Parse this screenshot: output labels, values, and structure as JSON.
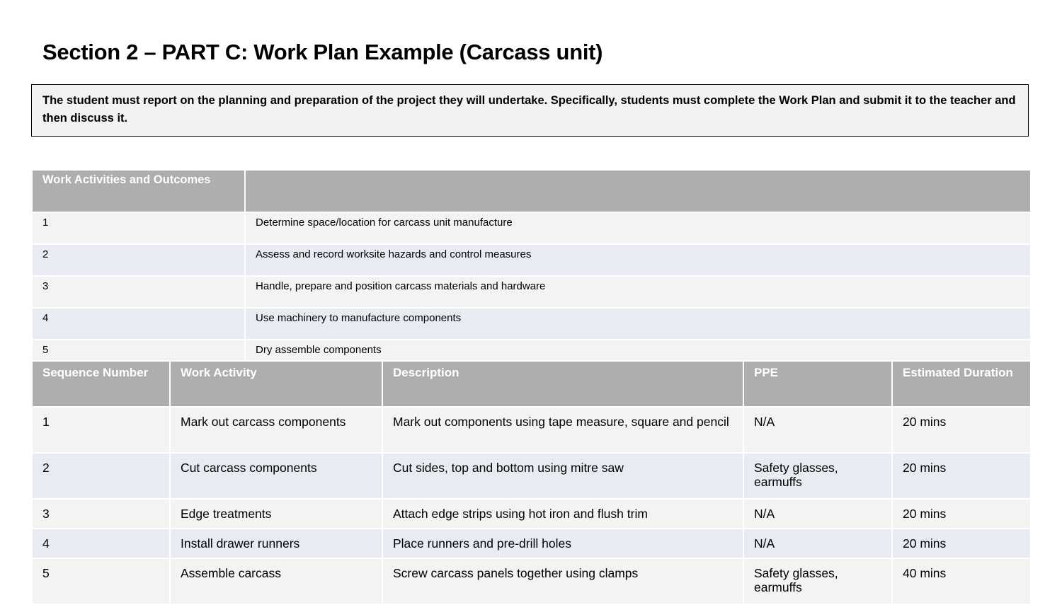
{
  "title": "Section 2 – PART C: Work Plan Example (Carcass unit)",
  "instruction": "The student must report on the planning and preparation of the project they will undertake. Specifically, students must complete the Work Plan and submit it to the teacher and then discuss it.",
  "activities_table": {
    "header": [
      "Work Activities and Outcomes",
      ""
    ],
    "rows": [
      {
        "num": "1",
        "text": "Determine space/location for carcass unit manufacture"
      },
      {
        "num": "2",
        "text": "Assess and record worksite hazards and control measures"
      },
      {
        "num": "3",
        "text": "Handle, prepare and position carcass materials and hardware"
      },
      {
        "num": "4",
        "text": "Use machinery to manufacture components"
      },
      {
        "num": "5",
        "text": "Dry assemble components"
      }
    ]
  },
  "work_plan_table": {
    "headers": [
      "Sequence Number",
      "Work Activity",
      "Description",
      "PPE",
      "Estimated Duration"
    ],
    "rows": [
      {
        "seq": "1",
        "activity": "Mark out carcass components",
        "description": "Mark out components using tape measure, square and pencil",
        "ppe": "N/A",
        "duration": "20 mins"
      },
      {
        "seq": "2",
        "activity": "Cut carcass components",
        "description": "Cut sides, top and bottom using mitre saw",
        "ppe": "Safety glasses, earmuffs",
        "duration": "20 mins"
      },
      {
        "seq": "3",
        "activity": "Edge treatments",
        "description": "Attach edge strips using hot iron and flush trim",
        "ppe": "N/A",
        "duration": "20 mins"
      },
      {
        "seq": "4",
        "activity": "Install drawer runners",
        "description": "Place runners and pre-drill holes",
        "ppe": "N/A",
        "duration": "20 mins"
      },
      {
        "seq": "5",
        "activity": "Assemble carcass",
        "description": "Screw carcass panels together using clamps",
        "ppe": "Safety glasses, earmuffs",
        "duration": "40 mins"
      }
    ]
  },
  "colors": {
    "header_bg": "#aeaeae",
    "row_light": "#f3f3f3",
    "row_tint": "#e8ebf2",
    "instruction_bg": "#f2f2f2"
  }
}
